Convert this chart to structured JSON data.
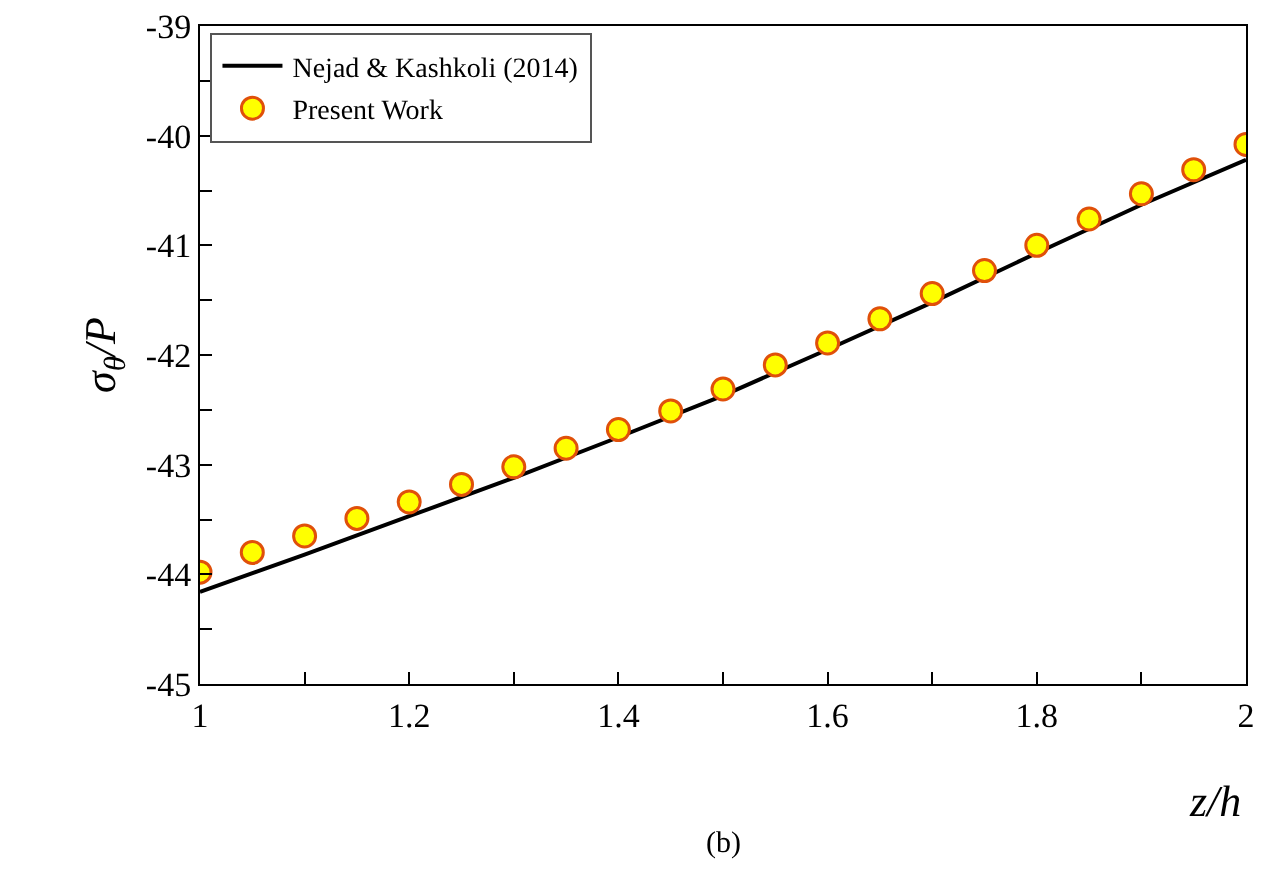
{
  "chart_data": {
    "type": "line",
    "xlabel": "z/h",
    "ylabel": "σ$_{θ}$/P",
    "annotations": [
      "(b)"
    ],
    "series": [
      {
        "name": "Nejad & Kashkoli (2014)",
        "color": "#000000",
        "marker": "none",
        "x": [
          1,
          1.1,
          1.2,
          1.3,
          1.4,
          1.5,
          1.6,
          1.7,
          1.8,
          1.9,
          2
        ],
        "values": [
          -44.16,
          -43.82,
          -43.47,
          -43.12,
          -42.75,
          -42.37,
          -41.95,
          -41.52,
          -41.07,
          -40.63,
          -40.22
        ]
      },
      {
        "name": "Present Work",
        "type": "scatter",
        "color": "#ffff00",
        "marker": "circle",
        "x": [
          1,
          1.05,
          1.1,
          1.15,
          1.2,
          1.25,
          1.3,
          1.35,
          1.4,
          1.45,
          1.5,
          1.55,
          1.6,
          1.65,
          1.7,
          1.75,
          1.8,
          1.85,
          1.9,
          1.95,
          2
        ],
        "values": [
          -43.98,
          -43.8,
          -43.65,
          -43.49,
          -43.34,
          -43.18,
          -43.02,
          -42.85,
          -42.68,
          -42.51,
          -42.31,
          -42.09,
          -41.89,
          -41.67,
          -41.44,
          -41.23,
          -41,
          -40.76,
          -40.53,
          -40.31,
          -40.08
        ]
      }
    ],
    "xlim": [
      1,
      2
    ],
    "xticks": [
      1,
      {
        "value": 1.1,
        "label": null
      },
      1.2,
      {
        "value": 1.3,
        "label": null
      },
      1.4,
      {
        "value": 1.5,
        "label": null
      },
      1.6,
      {
        "value": 1.7,
        "label": null
      },
      1.8,
      {
        "value": 1.9,
        "label": null
      },
      2
    ],
    "ylim": [
      -45,
      -39
    ],
    "yticks": [
      -45,
      {
        "value": -44.5,
        "label": null
      },
      -44,
      {
        "value": -43.5,
        "label": null
      },
      -43,
      {
        "value": -42.5,
        "label": null
      },
      -42,
      {
        "value": -41.5,
        "label": null
      },
      -41,
      {
        "value": -40.5,
        "label": null
      },
      -40,
      {
        "value": -39.5,
        "label": null
      },
      -39
    ],
    "grid": false,
    "legend": "top left"
  }
}
